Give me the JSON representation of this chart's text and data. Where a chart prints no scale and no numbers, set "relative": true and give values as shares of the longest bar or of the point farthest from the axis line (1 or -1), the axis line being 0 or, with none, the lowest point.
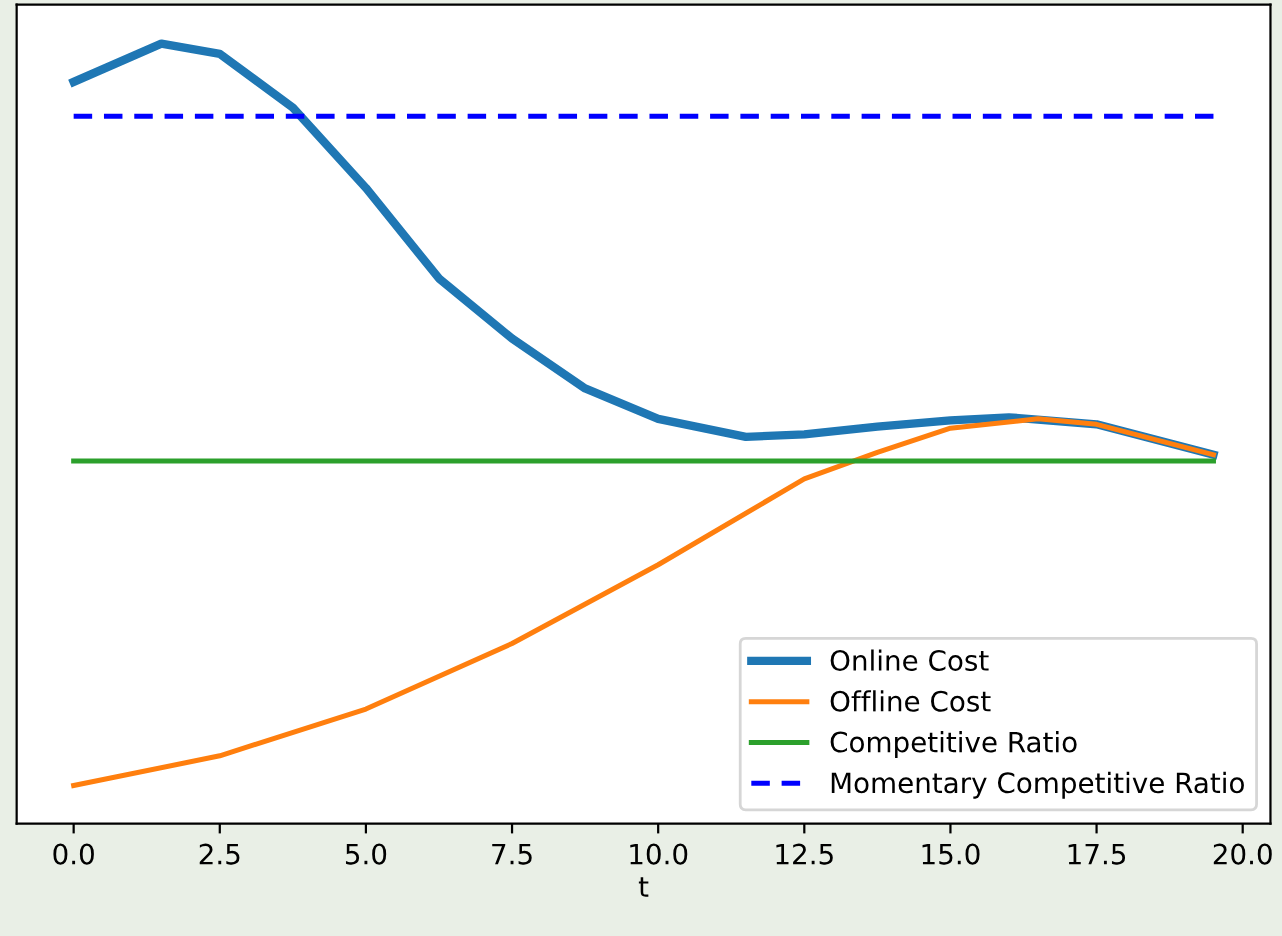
{
  "chart_data": {
    "type": "line",
    "xlabel": "t",
    "relative": true,
    "tick_labels": "x",
    "grid": false,
    "legend": "bottom right",
    "xlim": [
      -0.975,
      20.475
    ],
    "xticks": [
      {
        "value": 0,
        "label": "0.0"
      },
      {
        "value": 2.5,
        "label": "2.5"
      },
      {
        "value": 5,
        "label": "5.0"
      },
      {
        "value": 7.5,
        "label": "7.5"
      },
      {
        "value": 10,
        "label": "10.0"
      },
      {
        "value": 12.5,
        "label": "12.5"
      },
      {
        "value": 15,
        "label": "15.0"
      },
      {
        "value": 17.5,
        "label": "17.5"
      },
      {
        "value": 20,
        "label": "20.0"
      }
    ],
    "series": [
      {
        "name": "Online Cost",
        "color": "#1f77b4",
        "x": [
          0,
          1.5,
          2.5,
          3.75,
          5,
          6.25,
          7.5,
          8.75,
          10,
          11.5,
          12.5,
          13.75,
          15,
          16,
          17.5,
          19.5
        ],
        "values": [
          0.951,
          1.0,
          0.987,
          0.918,
          0.815,
          0.699,
          0.622,
          0.558,
          0.519,
          0.496,
          0.499,
          0.509,
          0.517,
          0.521,
          0.512,
          0.473
        ]
      },
      {
        "name": "Offline Cost",
        "color": "#ff7f0e",
        "x": [
          0,
          2.5,
          5,
          7.5,
          10,
          12.5,
          13.75,
          15,
          16.5,
          17.5,
          19.5
        ],
        "values": [
          0.049,
          0.087,
          0.147,
          0.231,
          0.332,
          0.442,
          0.476,
          0.507,
          0.519,
          0.512,
          0.473
        ]
      },
      {
        "name": "Competitive Ratio",
        "color": "#2ca02c",
        "x": [
          0,
          19.5
        ],
        "values": [
          0.465,
          0.465
        ]
      },
      {
        "name": "Momentary Competitive Ratio",
        "color": "#0000ff",
        "line_style": "dashed",
        "x": [
          0,
          19.5
        ],
        "values": [
          0.907,
          0.907
        ]
      }
    ]
  }
}
